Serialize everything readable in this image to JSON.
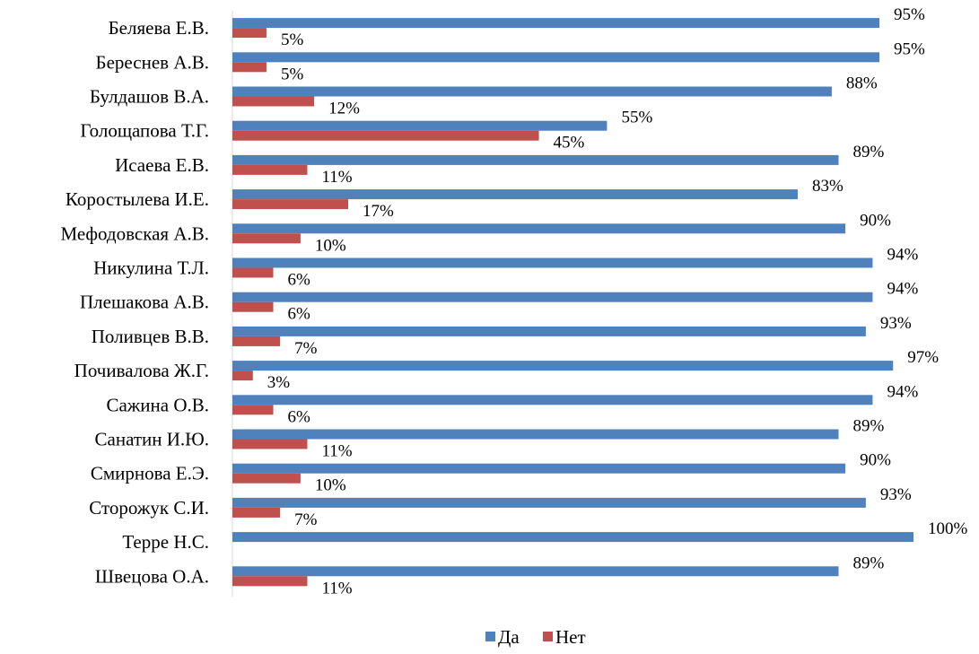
{
  "chart_data": {
    "type": "bar",
    "orientation": "horizontal",
    "categories": [
      "Беляева Е.В.",
      "Береснев А.В.",
      "Булдашов В.А.",
      "Голощапова Т.Г.",
      "Исаева Е.В.",
      "Коростылева И.Е.",
      "Мефодовская А.В.",
      "Никулина Т.Л.",
      "Плешакова А.В.",
      "Поливцев В.В.",
      "Почивалова Ж.Г.",
      "Сажина О.В.",
      "Санатин И.Ю.",
      "Смирнова Е.Э.",
      "Сторожук С.И.",
      "Терре Н.С.",
      "Швецова О.А."
    ],
    "series": [
      {
        "name": "Да",
        "color": "#4F81BD",
        "values": [
          95,
          95,
          88,
          55,
          89,
          83,
          90,
          94,
          94,
          93,
          97,
          94,
          89,
          90,
          93,
          100,
          89
        ],
        "labels": [
          "95%",
          "95%",
          "88%",
          "55%",
          "89%",
          "83%",
          "90%",
          "94%",
          "94%",
          "93%",
          "97%",
          "94%",
          "89%",
          "90%",
          "93%",
          "100%",
          "89%"
        ]
      },
      {
        "name": "Нет",
        "color": "#C0504D",
        "values": [
          5,
          5,
          12,
          45,
          11,
          17,
          10,
          6,
          6,
          7,
          3,
          6,
          11,
          10,
          7,
          0,
          11
        ],
        "labels": [
          "5%",
          "5%",
          "12%",
          "45%",
          "11%",
          "17%",
          "10%",
          "6%",
          "6%",
          "7%",
          "3%",
          "6%",
          "11%",
          "10%",
          "7%",
          "",
          "11%"
        ]
      }
    ],
    "xlim": [
      0,
      100
    ],
    "unit": "%",
    "grid": false,
    "legend_position": "bottom"
  }
}
